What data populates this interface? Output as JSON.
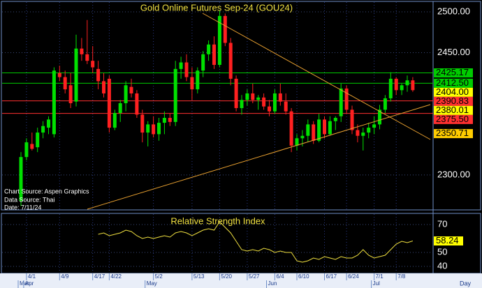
{
  "chart_data": [
    {
      "type": "candlestick",
      "title": "Gold Online Futures Sep-24 (GOU24)",
      "annotations": [
        "Chart Source: Aspen Graphics",
        "Data Source: Thai",
        "Date: 7/11/24"
      ],
      "categories": [
        null,
        "4/1",
        null,
        null,
        null,
        null,
        null,
        "4/9",
        null,
        null,
        null,
        null,
        null,
        "4/17",
        null,
        null,
        "4/22",
        null,
        null,
        null,
        null,
        null,
        null,
        null,
        "5/2",
        null,
        null,
        null,
        null,
        null,
        null,
        "5/13",
        null,
        null,
        null,
        null,
        "5/20",
        null,
        null,
        null,
        null,
        "5/27",
        null,
        null,
        null,
        null,
        "6/4",
        null,
        null,
        null,
        "6/10",
        null,
        null,
        null,
        null,
        "6/17",
        null,
        null,
        null,
        "6/24",
        null,
        null,
        null,
        null,
        "7/1",
        null,
        null,
        null,
        "7/8",
        null,
        null,
        null
      ],
      "month_categories": [
        "Mar",
        "Apr",
        null,
        null,
        null,
        null,
        null,
        null,
        null,
        null,
        null,
        null,
        null,
        null,
        null,
        null,
        null,
        null,
        null,
        null,
        null,
        null,
        null,
        "May",
        null,
        null,
        null,
        null,
        null,
        null,
        null,
        null,
        null,
        null,
        null,
        null,
        null,
        null,
        null,
        null,
        null,
        null,
        null,
        null,
        null,
        "Jun",
        null,
        null,
        null,
        null,
        null,
        null,
        null,
        null,
        null,
        null,
        null,
        null,
        null,
        null,
        null,
        null,
        null,
        null,
        "Jul",
        null,
        null,
        null,
        null,
        null,
        null,
        null
      ],
      "period_label": "Day",
      "open": [
        2268,
        2322,
        2338,
        2334,
        2352,
        2358,
        2350,
        2425,
        2420,
        2410,
        2390,
        2455,
        2448,
        2440,
        2430,
        2415,
        2418,
        2358,
        2376,
        2388,
        2408,
        2400,
        2374,
        2352,
        2362,
        2350,
        2364,
        2370,
        2365,
        2430,
        2438,
        2420,
        2405,
        2428,
        2448,
        2460,
        2435,
        2495,
        2462,
        2418,
        2382,
        2392,
        2400,
        2392,
        2395,
        2384,
        2378,
        2400,
        2390,
        2378,
        2336,
        2345,
        2348,
        2362,
        2342,
        2368,
        2350,
        2366,
        2372,
        2406,
        2380,
        2355,
        2348,
        2352,
        2358,
        2362,
        2380,
        2394,
        2418,
        2404,
        2410,
        2416
      ],
      "high": [
        2328,
        2345,
        2352,
        2358,
        2366,
        2372,
        2432,
        2434,
        2428,
        2425,
        2472,
        2468,
        2490,
        2458,
        2440,
        2425,
        2422,
        2380,
        2392,
        2415,
        2418,
        2404,
        2380,
        2366,
        2372,
        2370,
        2378,
        2376,
        2440,
        2445,
        2448,
        2432,
        2432,
        2452,
        2465,
        2470,
        2502,
        2498,
        2468,
        2422,
        2398,
        2405,
        2412,
        2398,
        2400,
        2392,
        2405,
        2412,
        2400,
        2382,
        2350,
        2355,
        2368,
        2366,
        2375,
        2372,
        2372,
        2372,
        2412,
        2410,
        2385,
        2362,
        2358,
        2364,
        2372,
        2386,
        2398,
        2426,
        2420,
        2412,
        2422,
        2420
      ],
      "low": [
        2262,
        2318,
        2330,
        2328,
        2345,
        2350,
        2346,
        2415,
        2400,
        2382,
        2384,
        2440,
        2436,
        2425,
        2405,
        2395,
        2352,
        2355,
        2365,
        2378,
        2395,
        2370,
        2340,
        2335,
        2346,
        2342,
        2350,
        2360,
        2360,
        2418,
        2415,
        2392,
        2400,
        2420,
        2440,
        2430,
        2432,
        2458,
        2410,
        2378,
        2374,
        2385,
        2388,
        2380,
        2380,
        2372,
        2375,
        2385,
        2374,
        2328,
        2330,
        2335,
        2340,
        2338,
        2340,
        2345,
        2348,
        2355,
        2365,
        2375,
        2350,
        2340,
        2330,
        2345,
        2350,
        2356,
        2376,
        2390,
        2398,
        2398,
        2402,
        2402
      ],
      "close": [
        2322,
        2340,
        2332,
        2352,
        2360,
        2368,
        2428,
        2420,
        2405,
        2388,
        2455,
        2448,
        2440,
        2432,
        2415,
        2400,
        2358,
        2376,
        2388,
        2410,
        2400,
        2374,
        2352,
        2362,
        2350,
        2364,
        2370,
        2365,
        2430,
        2438,
        2420,
        2405,
        2428,
        2448,
        2460,
        2435,
        2495,
        2462,
        2418,
        2382,
        2392,
        2400,
        2392,
        2395,
        2384,
        2378,
        2400,
        2390,
        2378,
        2336,
        2345,
        2348,
        2362,
        2342,
        2368,
        2350,
        2366,
        2370,
        2406,
        2380,
        2355,
        2348,
        2352,
        2358,
        2362,
        2380,
        2394,
        2418,
        2404,
        2410,
        2416,
        2404
      ],
      "up_color": "#00e000",
      "down_color": "#ff2020",
      "levels": [
        {
          "value": 2425.17,
          "color": "#00cc00",
          "line": true
        },
        {
          "value": 2412.5,
          "label": "2412.50",
          "color": "#00cc00",
          "line": true
        },
        {
          "value": 2404,
          "label": "2404.00",
          "color": "#ffff00",
          "line": false
        },
        {
          "value": 2390.83,
          "color": "#ff3030",
          "line": true
        },
        {
          "value": 2380.01,
          "color": "#ffff00",
          "line": false
        },
        {
          "value": 2375.5,
          "label": "2375.50",
          "color": "#ff3030",
          "line": true
        },
        {
          "value": 2350.71,
          "color": "#ffcc00",
          "line": false
        }
      ],
      "ylim": [
        2258,
        2512
      ],
      "yticks": [
        {
          "value": 2500,
          "label": "2500.00"
        },
        {
          "value": 2450,
          "label": "2450.00"
        },
        {
          "value": 2300,
          "label": "2300.00"
        }
      ],
      "grid": true
    },
    {
      "type": "line",
      "title": "Relative Strength Index",
      "color": "#f0e040",
      "values": [
        null,
        null,
        null,
        null,
        null,
        null,
        null,
        null,
        null,
        null,
        null,
        null,
        null,
        null,
        63,
        64,
        62,
        63,
        64,
        66,
        65,
        62,
        60,
        61,
        60,
        61,
        62,
        61,
        64,
        65,
        64,
        62,
        64,
        66,
        67,
        66,
        72,
        68,
        64,
        58,
        52,
        51,
        52,
        51,
        53,
        52,
        50,
        51,
        50,
        50,
        44,
        43,
        44,
        46,
        45,
        47,
        46,
        45,
        47,
        46,
        46,
        48,
        52,
        48,
        46,
        47,
        48,
        52,
        56,
        58,
        57,
        58.24
      ],
      "ylim": [
        35.5,
        77.5
      ],
      "yticks": [
        70,
        50,
        40
      ],
      "grid": true
    }
  ]
}
